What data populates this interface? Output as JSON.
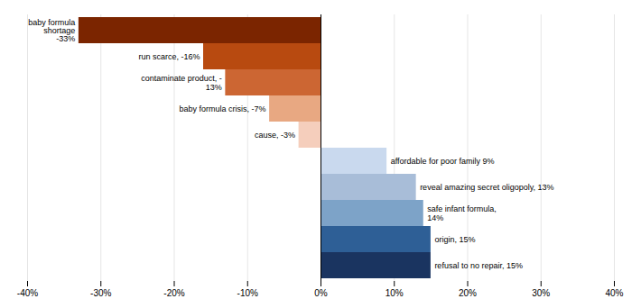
{
  "chart_data": {
    "type": "bar",
    "orientation": "horizontal",
    "categories": [
      null,
      null,
      null,
      null,
      null,
      null,
      null,
      null,
      null,
      null
    ],
    "values": [
      -33,
      -16,
      -13,
      -7,
      -3,
      9,
      13,
      14,
      15,
      15
    ],
    "colors": [
      "#7B2500",
      "#B84A10",
      "#CC6633",
      "#E8A882",
      "#F5CEBC",
      "#C9D9EE",
      "#A8BDD8",
      "#7DA3C8",
      "#2E5F96",
      "#1A3460"
    ],
    "data_labels": true,
    "value_labels": [
      "baby formula\nshortage\n-33%",
      "run scarce, -16%",
      "contaminate product, -\n13%",
      "baby formula crisis, -7%",
      "cause, -3%",
      "affordable for poor family 9%",
      "reveal amazing secret oligopoly, 13%",
      "safe infant formula,\n14%",
      "origin, 15%",
      "refusal to no repair, 15%"
    ],
    "xlim": [
      -40,
      40
    ],
    "xticks": [
      {
        "value": -40,
        "label": "-40%"
      },
      {
        "value": -30,
        "label": "-30%"
      },
      {
        "value": -20,
        "label": "-20%"
      },
      {
        "value": -10,
        "label": "-10%"
      },
      {
        "value": 0,
        "label": "0%"
      },
      {
        "value": 10,
        "label": "10%"
      },
      {
        "value": 20,
        "label": "20%"
      },
      {
        "value": 30,
        "label": "30%"
      },
      {
        "value": 40,
        "label": "40%"
      }
    ],
    "grid": true,
    "tick_labels": "x"
  }
}
